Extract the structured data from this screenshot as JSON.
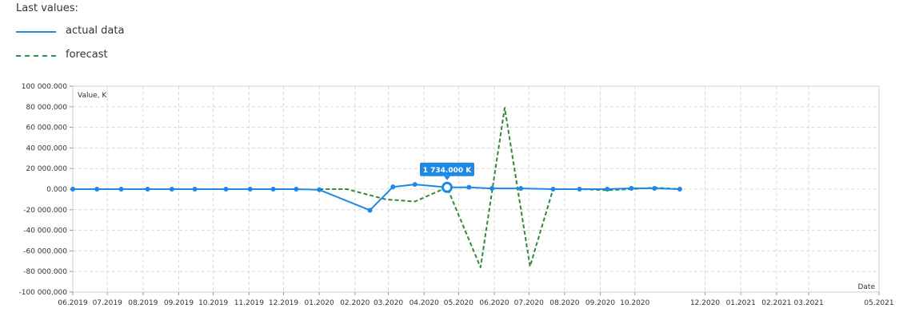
{
  "legend": {
    "title": "Last values:",
    "items": [
      {
        "label": "actual data",
        "color": "#1e88e5",
        "style": "solid"
      },
      {
        "label": "forecast",
        "color": "#2e8b3e",
        "style": "dashed"
      }
    ]
  },
  "chart_data": {
    "type": "line",
    "ylabel": "Value, K",
    "xlabel": "Date",
    "ylim": [
      -100000,
      100000
    ],
    "yticks": [
      {
        "value": 100000,
        "label": "100 000.000"
      },
      {
        "value": 80000,
        "label": "80 000.000"
      },
      {
        "value": 60000,
        "label": "60 000.000"
      },
      {
        "value": 40000,
        "label": "40 000.000"
      },
      {
        "value": 20000,
        "label": "20 000.000"
      },
      {
        "value": 0,
        "label": "0.000"
      },
      {
        "value": -20000,
        "label": "-20 000.000"
      },
      {
        "value": -40000,
        "label": "-40 000.000"
      },
      {
        "value": -60000,
        "label": "-60 000.000"
      },
      {
        "value": -80000,
        "label": "-80 000.000"
      },
      {
        "value": -100000,
        "label": "-100 000.000"
      }
    ],
    "xlim": [
      "2019-06-01",
      "2021-05-01"
    ],
    "xticks": [
      {
        "value": "2019-06-01",
        "label": "06.2019"
      },
      {
        "value": "2019-07-01",
        "label": "07.2019"
      },
      {
        "value": "2019-08-01",
        "label": "08.2019"
      },
      {
        "value": "2019-09-01",
        "label": "09.2019"
      },
      {
        "value": "2019-10-01",
        "label": "10.2019"
      },
      {
        "value": "2019-11-01",
        "label": "11.2019"
      },
      {
        "value": "2019-12-01",
        "label": "12.2019"
      },
      {
        "value": "2020-01-01",
        "label": "01.2020"
      },
      {
        "value": "2020-02-01",
        "label": "02.2020"
      },
      {
        "value": "2020-03-01",
        "label": "03.2020"
      },
      {
        "value": "2020-04-01",
        "label": "04.2020"
      },
      {
        "value": "2020-05-01",
        "label": "05.2020"
      },
      {
        "value": "2020-06-01",
        "label": "06.2020"
      },
      {
        "value": "2020-07-01",
        "label": "07.2020"
      },
      {
        "value": "2020-08-01",
        "label": "08.2020"
      },
      {
        "value": "2020-09-01",
        "label": "09.2020"
      },
      {
        "value": "2020-10-01",
        "label": "10.2020"
      },
      {
        "value": "2020-12-01",
        "label": "12.2020"
      },
      {
        "value": "2021-01-01",
        "label": "01.2021"
      },
      {
        "value": "2021-02-01",
        "label": "02.2021"
      },
      {
        "value": "2021-03-01",
        "label": "03.2021"
      },
      {
        "value": "2021-05-01",
        "label": "05.2021"
      }
    ],
    "grid": true,
    "series": [
      {
        "name": "actual data",
        "color": "#1e88e5",
        "style": "solid",
        "markers": true,
        "points": [
          {
            "x": "2019-06-01",
            "y": 0
          },
          {
            "x": "2019-06-22",
            "y": 0
          },
          {
            "x": "2019-07-13",
            "y": 0
          },
          {
            "x": "2019-08-05",
            "y": 0
          },
          {
            "x": "2019-08-26",
            "y": 0
          },
          {
            "x": "2019-09-15",
            "y": 0
          },
          {
            "x": "2019-10-12",
            "y": 0
          },
          {
            "x": "2019-11-02",
            "y": 0
          },
          {
            "x": "2019-11-22",
            "y": 0
          },
          {
            "x": "2019-12-12",
            "y": 0
          },
          {
            "x": "2020-01-01",
            "y": -600
          },
          {
            "x": "2020-02-14",
            "y": -20500
          },
          {
            "x": "2020-03-05",
            "y": 2200
          },
          {
            "x": "2020-03-24",
            "y": 4600
          },
          {
            "x": "2020-04-21",
            "y": 1734
          },
          {
            "x": "2020-05-10",
            "y": 1800
          },
          {
            "x": "2020-05-30",
            "y": 700
          },
          {
            "x": "2020-06-24",
            "y": 700
          },
          {
            "x": "2020-07-22",
            "y": 0
          },
          {
            "x": "2020-08-14",
            "y": 0
          },
          {
            "x": "2020-09-07",
            "y": 0
          },
          {
            "x": "2020-09-28",
            "y": 800
          },
          {
            "x": "2020-10-18",
            "y": 800
          },
          {
            "x": "2020-11-09",
            "y": 0
          }
        ]
      },
      {
        "name": "forecast",
        "color": "#2e8b3e",
        "style": "dashed",
        "markers": false,
        "points": [
          {
            "x": "2020-01-01",
            "y": 0
          },
          {
            "x": "2020-01-25",
            "y": 0
          },
          {
            "x": "2020-02-28",
            "y": -10000
          },
          {
            "x": "2020-03-24",
            "y": -12000
          },
          {
            "x": "2020-04-21",
            "y": 1734
          },
          {
            "x": "2020-05-20",
            "y": -76000
          },
          {
            "x": "2020-06-10",
            "y": 79000
          },
          {
            "x": "2020-07-02",
            "y": -75000
          },
          {
            "x": "2020-07-22",
            "y": 0
          },
          {
            "x": "2020-08-14",
            "y": 0
          },
          {
            "x": "2020-09-07",
            "y": -1000
          },
          {
            "x": "2020-09-28",
            "y": 0
          },
          {
            "x": "2020-10-18",
            "y": 1500
          },
          {
            "x": "2020-11-09",
            "y": 0
          }
        ]
      }
    ],
    "highlight": {
      "series": "actual data",
      "x": "2020-04-21",
      "y": 1734,
      "label": "1 734.000 K"
    }
  }
}
